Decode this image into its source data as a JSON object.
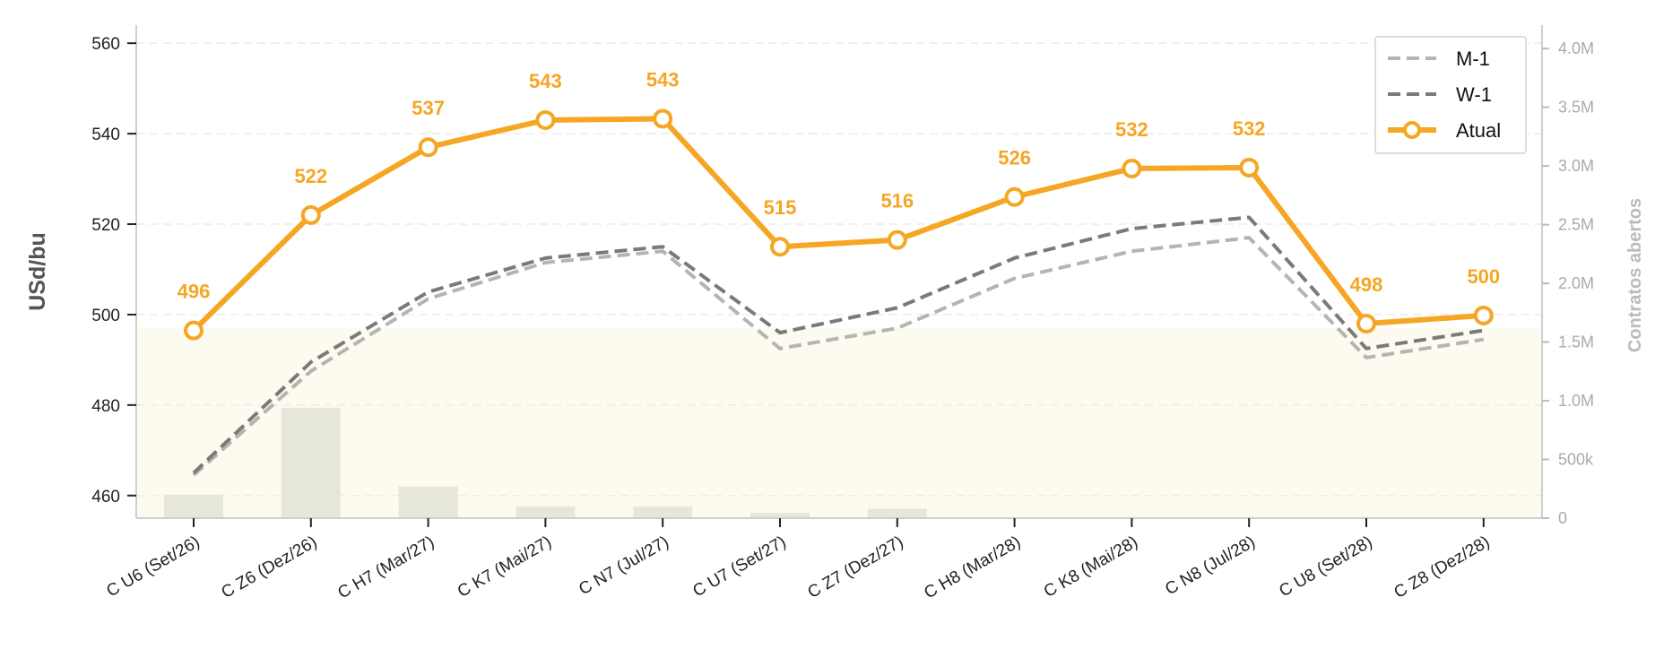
{
  "chart_data": {
    "type": "line",
    "categories": [
      "C U6 (Set/26)",
      "C Z6 (Dez/26)",
      "C H7 (Mar/27)",
      "C K7 (Mai/27)",
      "C N7 (Jul/27)",
      "C U7 (Set/27)",
      "C Z7 (Dez/27)",
      "C H8 (Mar/28)",
      "C K8 (Mai/28)",
      "C N8 (Jul/28)",
      "C U8 (Set/28)",
      "C Z8 (Dez/28)"
    ],
    "ylabel": "USd/bu",
    "y2label": "Contratos abertos",
    "ylim": [
      455,
      564
    ],
    "y_ticks": [
      460,
      480,
      500,
      520,
      540,
      560
    ],
    "y2lim": [
      0,
      4200000
    ],
    "y2_ticks": [
      0,
      500000,
      1000000,
      1500000,
      2000000,
      2500000,
      3000000,
      3500000,
      4000000
    ],
    "y2_tick_labels": [
      "0",
      "500k",
      "1.0M",
      "1.5M",
      "2.0M",
      "2.5M",
      "3.0M",
      "3.5M",
      "4.0M"
    ],
    "grid": true,
    "legend_position": "top-right",
    "series": [
      {
        "name": "M-1",
        "style": "dashed",
        "color": "#b5b5b0",
        "values": [
          464.5,
          487.5,
          503.5,
          511.5,
          514,
          492.5,
          497,
          508,
          514,
          517,
          490.5,
          494.5
        ]
      },
      {
        "name": "W-1",
        "style": "dashed",
        "color": "#7a7a78",
        "values": [
          465,
          489.5,
          505,
          512.5,
          515,
          496,
          501.5,
          512.5,
          519,
          521.5,
          492.5,
          496.5
        ]
      },
      {
        "name": "Atual",
        "style": "solid-markers",
        "color": "#f5a623",
        "values": [
          496.5,
          522,
          537,
          543,
          543.3,
          515,
          516.5,
          526,
          532.3,
          532.5,
          498,
          499.8
        ],
        "data_labels": [
          "496",
          "522",
          "537",
          "543",
          "543",
          "515",
          "516",
          "526",
          "532",
          "532",
          "498",
          "500"
        ]
      }
    ],
    "bars": {
      "axis": "y2",
      "color": "#e6e6da",
      "values": [
        200000,
        940000,
        270000,
        100000,
        100000,
        45000,
        80000,
        0,
        0,
        0,
        0,
        0
      ]
    },
    "band": {
      "y_max": 497,
      "color": "#fdfbf0"
    }
  }
}
